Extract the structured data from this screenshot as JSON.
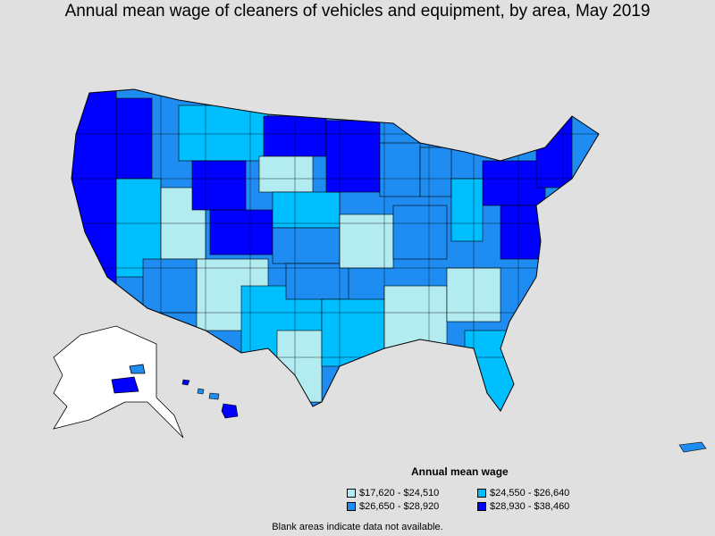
{
  "title": "Annual mean wage of cleaners of vehicles and equipment, by area, May 2019",
  "legend": {
    "title": "Annual mean wage",
    "items": [
      {
        "label": "$17,620 - $24,510",
        "color": "#b2ecf0"
      },
      {
        "label": "$24,550 - $26,640",
        "color": "#00bfff"
      },
      {
        "label": "$26,650 - $28,920",
        "color": "#1e8cf0"
      },
      {
        "label": "$28,930 - $38,460",
        "color": "#0000ff"
      }
    ]
  },
  "footnote": "Blank areas indicate data not available.",
  "colors": {
    "background": "#e0e0e0",
    "no_data": "#ffffff",
    "border": "#000000"
  }
}
